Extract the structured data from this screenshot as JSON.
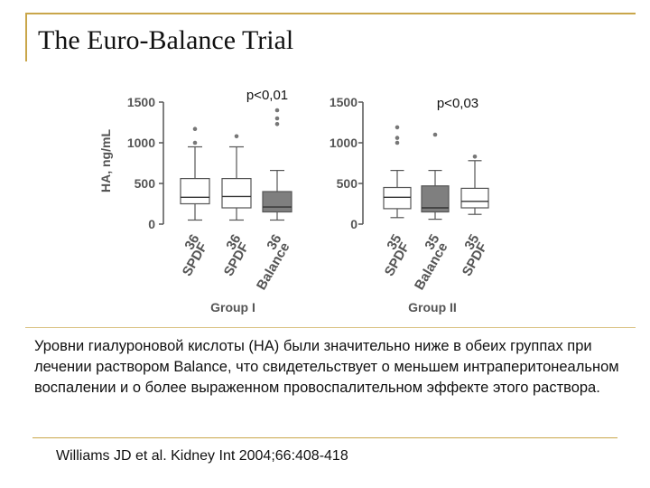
{
  "slide": {
    "title": "The Euro-Balance Trial",
    "caption": "Уровни гиалуроновой кислоты (HA) были значительно ниже в обеих группах при лечении раствором Balance, что свидетельствует о меньшем интраперитонеальном воспалении и о более выраженном провоспалительном эффекте этого раствора.",
    "citation": "Williams JD et al. Kidney Int 2004;66:408-418"
  },
  "colors": {
    "rule": "#c9a64a",
    "box_spdf": "#ffffff",
    "box_balance": "#7f7f7f",
    "ink": "#555555"
  },
  "chart_data": {
    "type": "box",
    "ylabel": "HA, ng/mL",
    "ylim": [
      0,
      1500
    ],
    "yticks": [
      0,
      500,
      1000,
      1500
    ],
    "panels": [
      {
        "group": "Group I",
        "pvalue": "p<0,01",
        "boxes": [
          {
            "n": "36",
            "label": "SPDF",
            "whisker_low": 50,
            "q1": 250,
            "median": 330,
            "q3": 560,
            "whisker_high": 950,
            "outliers": [
              1000,
              1170
            ]
          },
          {
            "n": "36",
            "label": "SPDF",
            "whisker_low": 50,
            "q1": 200,
            "median": 340,
            "q3": 560,
            "whisker_high": 950,
            "outliers": [
              1080
            ]
          },
          {
            "n": "36",
            "label": "Balance",
            "whisker_low": 50,
            "q1": 150,
            "median": 210,
            "q3": 400,
            "whisker_high": 660,
            "outliers": [
              1230,
              1300,
              1400
            ]
          }
        ]
      },
      {
        "group": "Group II",
        "pvalue": "p<0,03",
        "boxes": [
          {
            "n": "35",
            "label": "SPDF",
            "whisker_low": 80,
            "q1": 190,
            "median": 330,
            "q3": 450,
            "whisker_high": 660,
            "outliers": [
              1000,
              1060,
              1190
            ]
          },
          {
            "n": "35",
            "label": "Balance",
            "whisker_low": 60,
            "q1": 150,
            "median": 200,
            "q3": 470,
            "whisker_high": 660,
            "outliers": [
              1100
            ]
          },
          {
            "n": "35",
            "label": "SPDF",
            "whisker_low": 120,
            "q1": 200,
            "median": 280,
            "q3": 440,
            "whisker_high": 780,
            "outliers": [
              830
            ]
          }
        ]
      }
    ]
  }
}
